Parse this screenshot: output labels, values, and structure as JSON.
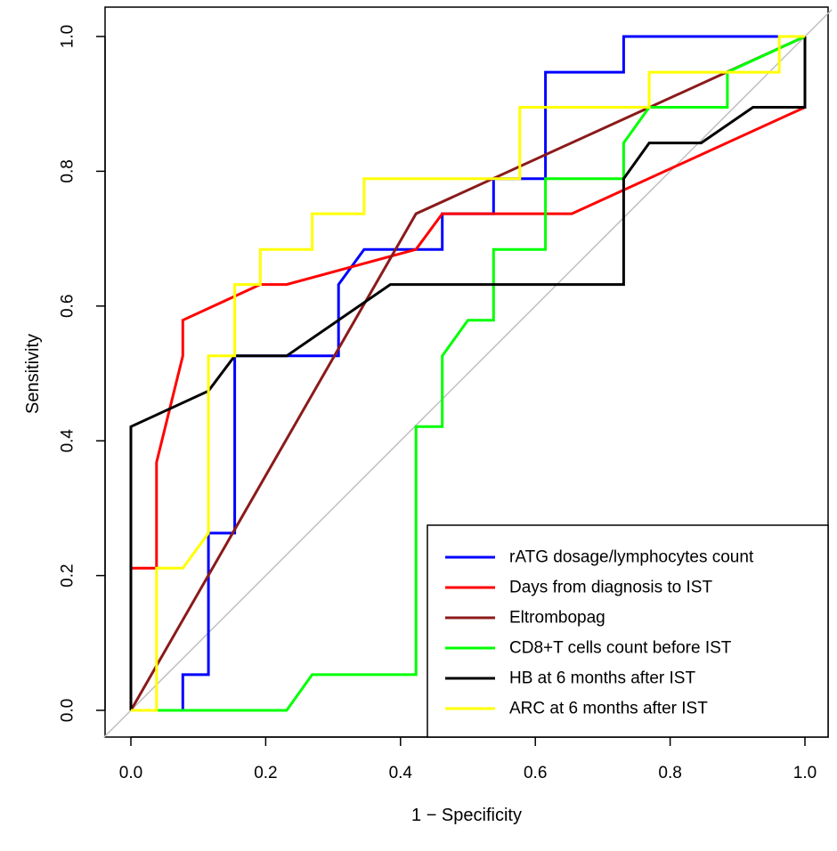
{
  "chart_data": {
    "type": "line",
    "title": "",
    "xlabel": "1 − Specificity",
    "ylabel": "Sensitivity",
    "xlim": [
      0,
      1
    ],
    "ylim": [
      0,
      1
    ],
    "xticks": [
      "0.0",
      "0.2",
      "0.4",
      "0.6",
      "0.8",
      "1.0"
    ],
    "yticks": [
      "0.0",
      "0.2",
      "0.4",
      "0.6",
      "0.8",
      "1.0"
    ],
    "tick_values": [
      0,
      0.2,
      0.4,
      0.6,
      0.8,
      1.0
    ],
    "reference_line": {
      "from": [
        -0.04,
        -0.04
      ],
      "to": [
        1.04,
        1.04
      ],
      "color": "#bebebe"
    },
    "legend_position": "bottom-right",
    "series": [
      {
        "name": "rATG dosage/lymphocytes count",
        "color": "#0000ff",
        "x": [
          0,
          0.038,
          0.077,
          0.077,
          0.115,
          0.115,
          0.154,
          0.154,
          0.231,
          0.308,
          0.308,
          0.346,
          0.462,
          0.462,
          0.538,
          0.538,
          0.615,
          0.615,
          0.731,
          0.731,
          1.0
        ],
        "y": [
          0,
          0,
          0,
          0.053,
          0.053,
          0.263,
          0.263,
          0.526,
          0.526,
          0.526,
          0.632,
          0.684,
          0.684,
          0.737,
          0.737,
          0.789,
          0.789,
          0.947,
          0.947,
          1.0,
          1.0
        ]
      },
      {
        "name": "Days from diagnosis to IST",
        "color": "#ff0000",
        "x": [
          0,
          0,
          0.038,
          0.038,
          0.077,
          0.077,
          0.192,
          0.231,
          0.423,
          0.462,
          0.654,
          1.0
        ],
        "y": [
          0,
          0.211,
          0.211,
          0.368,
          0.526,
          0.579,
          0.632,
          0.632,
          0.684,
          0.737,
          0.737,
          0.895
        ]
      },
      {
        "name": "Eltrombopag",
        "color": "#8b1a1a",
        "x": [
          0,
          0.423,
          1.0
        ],
        "y": [
          0,
          0.737,
          1.0
        ]
      },
      {
        "name": "CD8+T cells count before IST",
        "color": "#00ff00",
        "x": [
          0,
          0.231,
          0.269,
          0.423,
          0.423,
          0.462,
          0.462,
          0.5,
          0.538,
          0.538,
          0.615,
          0.615,
          0.731,
          0.731,
          0.769,
          0.885,
          0.885,
          1.0
        ],
        "y": [
          0,
          0,
          0.053,
          0.053,
          0.421,
          0.421,
          0.526,
          0.579,
          0.579,
          0.684,
          0.684,
          0.789,
          0.789,
          0.842,
          0.895,
          0.895,
          0.947,
          1.0
        ]
      },
      {
        "name": "HB at 6 months after IST",
        "color": "#000000",
        "x": [
          0,
          0,
          0.115,
          0.154,
          0.231,
          0.385,
          0.731,
          0.731,
          0.769,
          0.846,
          0.923,
          1.0,
          1.0
        ],
        "y": [
          0,
          0.421,
          0.474,
          0.526,
          0.526,
          0.632,
          0.632,
          0.789,
          0.842,
          0.842,
          0.895,
          0.895,
          1.0
        ]
      },
      {
        "name": "ARC at 6 months after IST",
        "color": "#ffff00",
        "x": [
          0,
          0.038,
          0.038,
          0.077,
          0.115,
          0.115,
          0.154,
          0.154,
          0.192,
          0.192,
          0.269,
          0.269,
          0.346,
          0.346,
          0.577,
          0.577,
          0.769,
          0.769,
          0.962,
          0.962,
          1.0
        ],
        "y": [
          0,
          0,
          0.211,
          0.211,
          0.263,
          0.526,
          0.526,
          0.632,
          0.632,
          0.684,
          0.684,
          0.737,
          0.737,
          0.789,
          0.789,
          0.895,
          0.895,
          0.947,
          0.947,
          1.0,
          1.0
        ]
      }
    ]
  }
}
